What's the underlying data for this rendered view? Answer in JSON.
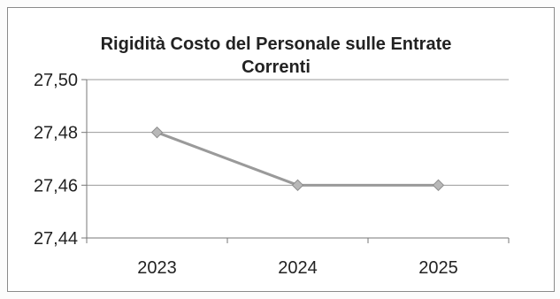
{
  "chart_data": {
    "type": "line",
    "title_lines": [
      "Rigidità Costo del Personale sulle Entrate",
      "Correnti"
    ],
    "categories": [
      "2023",
      "2024",
      "2025"
    ],
    "series": [
      {
        "values": [
          27.48,
          27.46,
          27.46
        ],
        "color": "#9a9a9a",
        "marker": "diamond",
        "marker_color": "#b8b8b8"
      }
    ],
    "y_ticks": [
      "27,44",
      "27,46",
      "27,48",
      "27,50"
    ],
    "ylim": [
      27.44,
      27.5
    ],
    "grid": true,
    "legend": "none"
  }
}
